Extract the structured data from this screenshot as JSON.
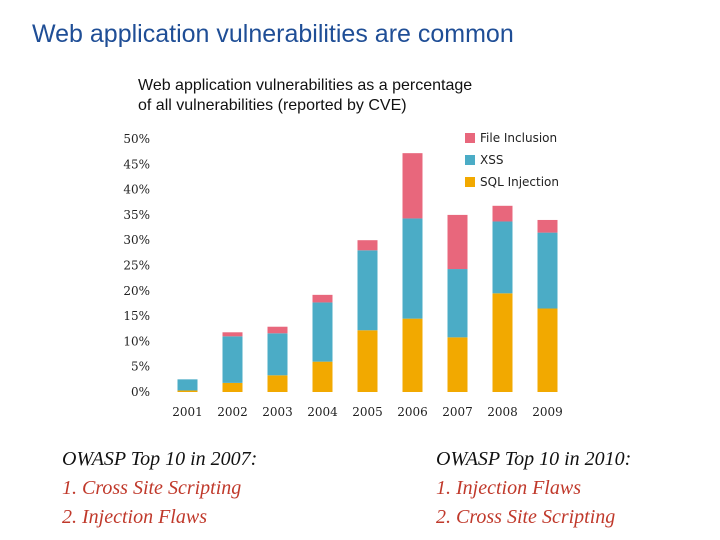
{
  "slide": {
    "title": "Web application vulnerabilities are common"
  },
  "colors": {
    "sql_injection": "#f2a900",
    "xss": "#4bacc6",
    "file_inclusion": "#e8677c",
    "title": "#1f4e96",
    "list_items": "#c0392b"
  },
  "chart_data": {
    "type": "bar",
    "stacked": true,
    "title_lines": [
      "Web application vulnerabilities as a percentage",
      "of all vulnerabilities (reported by CVE)"
    ],
    "categories": [
      "2001",
      "2002",
      "2003",
      "2004",
      "2005",
      "2006",
      "2007",
      "2008",
      "2009"
    ],
    "series": [
      {
        "name": "SQL Injection",
        "color": "#f2a900",
        "values": [
          0.3,
          1.8,
          3.3,
          6.0,
          12.2,
          14.5,
          10.8,
          19.5,
          16.5
        ]
      },
      {
        "name": "XSS",
        "color": "#4bacc6",
        "values": [
          2.2,
          9.2,
          8.3,
          11.7,
          15.8,
          19.8,
          13.5,
          14.2,
          15.0
        ]
      },
      {
        "name": "File Inclusion",
        "color": "#e8677c",
        "values": [
          0.0,
          0.8,
          1.3,
          1.5,
          2.0,
          12.9,
          10.7,
          3.1,
          2.5
        ]
      }
    ],
    "legend_order": [
      "File Inclusion",
      "XSS",
      "SQL Injection"
    ],
    "legend_position": "top-right",
    "y_ticks": [
      "0%",
      "5%",
      "10%",
      "15%",
      "20%",
      "25%",
      "30%",
      "35%",
      "40%",
      "45%",
      "50%"
    ],
    "ylim": [
      0,
      50
    ],
    "y_format": "percent",
    "grid": false
  },
  "notes": {
    "left": {
      "heading": "OWASP Top 10 in 2007:",
      "items": [
        "1. Cross Site Scripting",
        "2. Injection Flaws"
      ]
    },
    "right": {
      "heading": "OWASP Top 10 in 2010:",
      "items": [
        "1. Injection Flaws",
        "2. Cross Site Scripting"
      ]
    }
  }
}
